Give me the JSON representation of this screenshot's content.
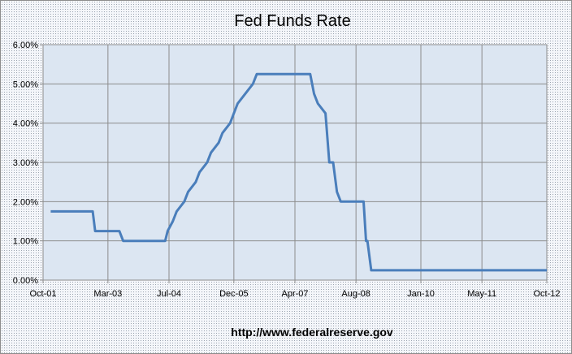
{
  "chart_data": {
    "type": "line",
    "title": "Fed Funds Rate",
    "source_note": "http://www.federalreserve.gov",
    "xlabel": "",
    "ylabel": "",
    "x_tick_labels": [
      "Oct-01",
      "Mar-03",
      "Jul-04",
      "Dec-05",
      "Apr-07",
      "Aug-08",
      "Jan-10",
      "May-11",
      "Oct-12"
    ],
    "x_ticks": [
      "2001-10",
      "2003-03",
      "2004-07",
      "2005-12",
      "2007-04",
      "2008-08",
      "2010-01",
      "2011-05",
      "2012-10"
    ],
    "y_tick_labels": [
      "0.00%",
      "1.00%",
      "2.00%",
      "3.00%",
      "4.00%",
      "5.00%",
      "6.00%"
    ],
    "ylim": [
      0,
      6
    ],
    "xlim": [
      "2001-10",
      "2012-10"
    ],
    "grid": true,
    "legend": "none",
    "line_color": "#4a7ebb",
    "plot_bg": "#dce6f2",
    "series": [
      {
        "values": [
          [
            "2001-12",
            1.75
          ],
          [
            "2002-11",
            1.75
          ],
          [
            "2002-11",
            1.25
          ],
          [
            "2003-06",
            1.25
          ],
          [
            "2003-07",
            1.0
          ],
          [
            "2004-06",
            1.0
          ],
          [
            "2004-06",
            1.25
          ],
          [
            "2004-08",
            1.5
          ],
          [
            "2004-09",
            1.75
          ],
          [
            "2004-11",
            2.0
          ],
          [
            "2004-12",
            2.25
          ],
          [
            "2005-02",
            2.5
          ],
          [
            "2005-03",
            2.75
          ],
          [
            "2005-05",
            3.0
          ],
          [
            "2005-06",
            3.25
          ],
          [
            "2005-08",
            3.5
          ],
          [
            "2005-09",
            3.75
          ],
          [
            "2005-11",
            4.0
          ],
          [
            "2005-12",
            4.25
          ],
          [
            "2006-01",
            4.5
          ],
          [
            "2006-03",
            4.75
          ],
          [
            "2006-05",
            5.0
          ],
          [
            "2006-06",
            5.25
          ],
          [
            "2007-08",
            5.25
          ],
          [
            "2007-09",
            4.75
          ],
          [
            "2007-10",
            4.5
          ],
          [
            "2007-12",
            4.25
          ],
          [
            "2008-01",
            3.0
          ],
          [
            "2008-02",
            3.0
          ],
          [
            "2008-03",
            2.25
          ],
          [
            "2008-04",
            2.0
          ],
          [
            "2008-10",
            2.0
          ],
          [
            "2008-10",
            1.0
          ],
          [
            "2008-11",
            1.0
          ],
          [
            "2008-12",
            0.25
          ],
          [
            "2012-10",
            0.25
          ]
        ]
      }
    ]
  }
}
